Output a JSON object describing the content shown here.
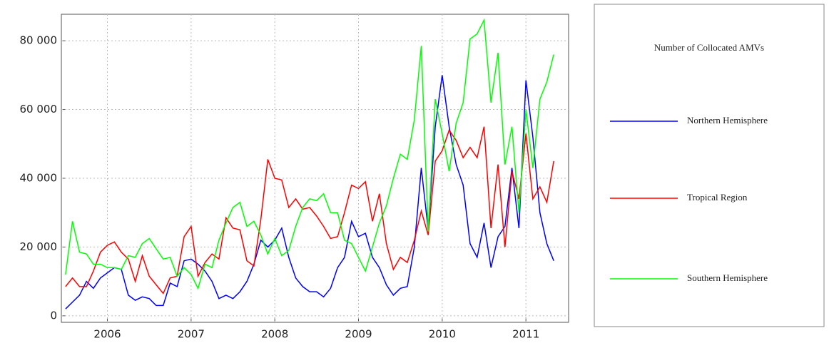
{
  "chart_data": {
    "type": "line",
    "legend_title": "Number of Collocated AMVs",
    "x": [
      2005.5,
      2005.583,
      2005.667,
      2005.75,
      2005.833,
      2005.917,
      2006,
      2006.083,
      2006.167,
      2006.25,
      2006.333,
      2006.417,
      2006.5,
      2006.583,
      2006.667,
      2006.75,
      2006.833,
      2006.917,
      2007,
      2007.083,
      2007.167,
      2007.25,
      2007.333,
      2007.417,
      2007.5,
      2007.583,
      2007.667,
      2007.75,
      2007.833,
      2007.917,
      2008,
      2008.083,
      2008.167,
      2008.25,
      2008.333,
      2008.417,
      2008.5,
      2008.583,
      2008.667,
      2008.75,
      2008.833,
      2008.917,
      2009,
      2009.083,
      2009.167,
      2009.25,
      2009.333,
      2009.417,
      2009.5,
      2009.583,
      2009.667,
      2009.75,
      2009.833,
      2009.917,
      2010,
      2010.083,
      2010.167,
      2010.25,
      2010.333,
      2010.417,
      2010.5,
      2010.583,
      2010.667,
      2010.75,
      2010.833,
      2010.917,
      2011,
      2011.083,
      2011.167,
      2011.25,
      2011.333
    ],
    "series": [
      {
        "name": "Northern Hemisphere",
        "color": "#0000ff",
        "values": [
          2000,
          4000,
          6000,
          10000,
          8000,
          11000,
          12500,
          14000,
          13500,
          6000,
          4500,
          5500,
          5000,
          3000,
          3000,
          9500,
          8500,
          16000,
          16500,
          15000,
          13000,
          10000,
          5000,
          6000,
          5000,
          7000,
          10000,
          15000,
          22000,
          20000,
          22000,
          25500,
          17000,
          11000,
          8500,
          7000,
          7000,
          5500,
          8000,
          14000,
          17000,
          27500,
          23000,
          24000,
          17000,
          14000,
          9000,
          6000,
          8000,
          8500,
          20000,
          43000,
          25000,
          55000,
          70000,
          55000,
          44000,
          38000,
          21000,
          17000,
          27000,
          14000,
          23000,
          26000,
          43000,
          25500,
          68500,
          52000,
          30000,
          21000,
          16000
        ]
      },
      {
        "name": "Tropical Region",
        "color": "#ff0000",
        "values": [
          8500,
          11000,
          8500,
          8500,
          13000,
          18500,
          20500,
          21500,
          18500,
          16500,
          10000,
          17500,
          11500,
          9000,
          6500,
          11000,
          11500,
          23000,
          26000,
          11500,
          15500,
          18000,
          16500,
          28500,
          25500,
          25000,
          16000,
          14500,
          28000,
          45500,
          40000,
          39500,
          31500,
          34000,
          31000,
          31500,
          29000,
          26000,
          22500,
          23000,
          30000,
          38000,
          37000,
          39000,
          27500,
          35500,
          21000,
          13500,
          17000,
          15500,
          22000,
          30500,
          23500,
          45000,
          48000,
          54000,
          51000,
          46000,
          49000,
          46000,
          55000,
          25500,
          44000,
          20000,
          42000,
          34000,
          53000,
          34000,
          37500,
          33000,
          45000
        ]
      },
      {
        "name": "Southern Hemisphere",
        "color": "#00ff00",
        "values": [
          12000,
          27500,
          18500,
          18000,
          15000,
          15000,
          14000,
          14000,
          13500,
          17500,
          17000,
          21000,
          22500,
          19500,
          16500,
          17000,
          11500,
          14000,
          12000,
          8000,
          15000,
          14000,
          22000,
          27000,
          31500,
          33000,
          26000,
          27500,
          23500,
          18000,
          22500,
          17500,
          19000,
          26000,
          31500,
          34000,
          33500,
          35500,
          30000,
          30000,
          22000,
          21000,
          17000,
          13000,
          20000,
          27000,
          32000,
          40000,
          47000,
          45500,
          57000,
          78500,
          24500,
          63000,
          53000,
          42000,
          56000,
          62000,
          80500,
          82000,
          86000,
          62000,
          76500,
          44000,
          55000,
          30000,
          60000,
          43000,
          63000,
          68000,
          76000
        ]
      }
    ],
    "xlim": [
      2005.45,
      2011.51
    ],
    "xticks": [
      2006,
      2007,
      2008,
      2009,
      2010,
      2011
    ],
    "ylim": [
      -1900,
      87700
    ],
    "yticks": [
      {
        "value": 0,
        "label": "0"
      },
      {
        "value": 20000,
        "label": "20 000"
      },
      {
        "value": 40000,
        "label": "40 000"
      },
      {
        "value": 60000,
        "label": "60 000"
      },
      {
        "value": 80000,
        "label": "80 000"
      }
    ],
    "grid": true
  }
}
